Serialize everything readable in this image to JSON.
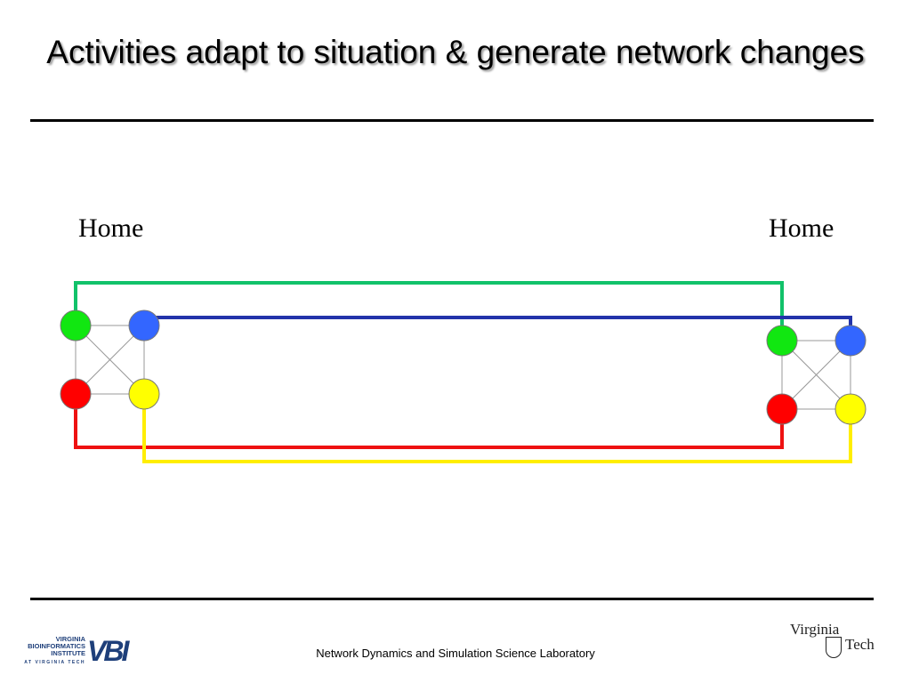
{
  "slide": {
    "title": "Activities adapt to situation & generate network changes"
  },
  "diagram": {
    "left_label": "Home",
    "right_label": "Home",
    "node_colors": {
      "green": "#11e711",
      "blue": "#3366ff",
      "red": "#ff0000",
      "yellow": "#ffff00"
    },
    "link_colors": {
      "green": "#11c26a",
      "blue": "#2233aa",
      "red": "#ee1111",
      "yellow": "#ffee00"
    },
    "inner_edge_color": "#999999"
  },
  "footer": {
    "lab_name": "Network Dynamics and Simulation Science Laboratory",
    "vbi_line1": "VIRGINIA",
    "vbi_line2": "BIOINFORMATICS",
    "vbi_line3": "INSTITUTE",
    "vbi_line4": "AT VIRGINIA TECH",
    "vbi_mark": "VBI",
    "vt_word1": "Virginia",
    "vt_word2": "Tech"
  }
}
